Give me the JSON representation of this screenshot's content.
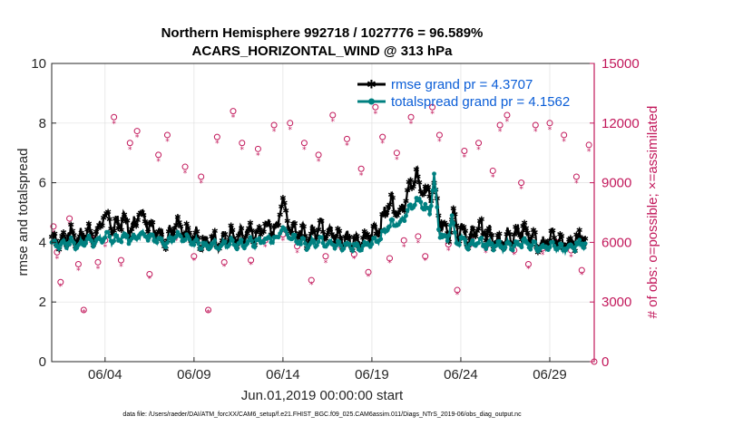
{
  "chart_data": {
    "type": "line",
    "title_line1": "Northern Hemisphere 992718 / 1027776 = 96.589%",
    "title_line2": "ACARS_HORIZONTAL_WIND @ 313 hPa",
    "xlabel": "Jun.01,2019 00:00:00 start",
    "ylabel": "rmse and totalspread",
    "ylabel_right": "# of obs: o=possible; ×=assimilated",
    "xlim": [
      0,
      30.5
    ],
    "ylim": [
      0,
      10
    ],
    "ylim_right": [
      0,
      15000
    ],
    "x_ticks": [
      3,
      8,
      13,
      18,
      23,
      28
    ],
    "x_tick_labels": [
      "06/04",
      "06/09",
      "06/14",
      "06/19",
      "06/24",
      "06/29"
    ],
    "y_ticks": [
      0,
      2,
      4,
      6,
      8,
      10
    ],
    "y_tick_labels": [
      "0",
      "2",
      "4",
      "6",
      "8",
      "10"
    ],
    "y_right_ticks": [
      0,
      3000,
      6000,
      9000,
      12000,
      15000
    ],
    "y_right_tick_labels": [
      "0",
      "3000",
      "6000",
      "9000",
      "12000",
      "15000"
    ],
    "colors": {
      "rmse": "#000000",
      "totalspread": "#008080",
      "obs": "#c2185b",
      "legend_text": "#0b5ed7"
    },
    "legend_position": "top-right",
    "legend": [
      {
        "label": "rmse grand pr = 4.3707",
        "series": "rmse"
      },
      {
        "label": "totalspread grand pr = 4.1562",
        "series": "totalspread"
      }
    ],
    "x_step_hours": 1,
    "rmse": {
      "name": "rmse",
      "key_days": [
        0,
        0.5,
        1,
        1.5,
        2,
        2.5,
        3,
        3.5,
        4,
        4.5,
        5,
        5.5,
        6,
        6.5,
        7,
        7.5,
        8,
        8.5,
        9,
        9.5,
        10,
        10.5,
        11,
        11.5,
        12,
        12.5,
        13,
        13.5,
        14,
        14.5,
        15,
        15.5,
        16,
        16.5,
        17,
        17.5,
        18,
        18.5,
        19,
        19.5,
        20,
        20.5,
        21,
        21.5,
        22,
        22.5,
        23,
        23.5,
        24,
        24.5,
        25,
        25.5,
        26,
        26.5,
        27,
        27.5,
        28,
        28.5,
        29,
        29.5,
        30
      ],
      "key_values": [
        4.2,
        4.0,
        4.3,
        4.1,
        4.4,
        4.2,
        4.9,
        4.5,
        4.8,
        4.4,
        5.0,
        4.6,
        4.3,
        4.1,
        4.6,
        4.3,
        4.2,
        4.0,
        4.1,
        4.0,
        4.3,
        4.1,
        4.4,
        4.2,
        4.6,
        4.4,
        4.9,
        4.5,
        4.3,
        4.1,
        4.6,
        4.4,
        4.2,
        4.1,
        4.1,
        4.0,
        4.3,
        4.6,
        5.4,
        5.0,
        5.6,
        6.3,
        5.8,
        5.1,
        4.6,
        4.2,
        4.4,
        4.1,
        4.5,
        4.3,
        4.0,
        4.1,
        4.3,
        4.4,
        4.2,
        3.8,
        4.2,
        4.0,
        3.9,
        4.1,
        4.2
      ],
      "spikes": [
        [
          3.0,
          4.9
        ],
        [
          5.0,
          5.0
        ],
        [
          13.0,
          5.5
        ],
        [
          19.5,
          5.0
        ],
        [
          20.8,
          5.6
        ],
        [
          21.5,
          6.0
        ],
        [
          22.6,
          5.2
        ]
      ]
    },
    "totalspread": {
      "name": "totalspread",
      "key_days": [
        0,
        0.5,
        1,
        1.5,
        2,
        2.5,
        3,
        3.5,
        4,
        4.5,
        5,
        5.5,
        6,
        6.5,
        7,
        7.5,
        8,
        8.5,
        9,
        9.5,
        10,
        10.5,
        11,
        11.5,
        12,
        12.5,
        13,
        13.5,
        14,
        14.5,
        15,
        15.5,
        16,
        16.5,
        17,
        17.5,
        18,
        18.5,
        19,
        19.5,
        20,
        20.5,
        21,
        21.5,
        22,
        22.5,
        23,
        23.5,
        24,
        24.5,
        25,
        25.5,
        26,
        26.5,
        27,
        27.5,
        28,
        28.5,
        29,
        29.5,
        30
      ],
      "key_values": [
        4.0,
        3.9,
        4.0,
        3.9,
        4.1,
        4.0,
        4.2,
        4.1,
        4.2,
        4.1,
        4.3,
        4.2,
        4.1,
        4.0,
        4.2,
        4.1,
        4.0,
        3.9,
        3.9,
        3.9,
        4.0,
        3.9,
        4.0,
        4.0,
        4.1,
        4.1,
        4.3,
        4.2,
        4.0,
        3.9,
        4.1,
        4.0,
        3.9,
        3.9,
        3.9,
        3.8,
        4.0,
        4.2,
        4.6,
        4.7,
        5.0,
        5.4,
        5.2,
        4.6,
        4.2,
        4.0,
        4.1,
        3.9,
        4.0,
        3.9,
        3.9,
        3.9,
        3.9,
        4.0,
        3.9,
        3.8,
        3.9,
        3.8,
        3.8,
        3.9,
        4.0
      ],
      "spikes": [
        [
          21.5,
          6.3
        ],
        [
          22.5,
          4.9
        ],
        [
          13.0,
          4.5
        ],
        [
          19.5,
          4.6
        ]
      ]
    },
    "obs_possible": [
      [
        0.1,
        6800
      ],
      [
        0.3,
        5500
      ],
      [
        0.5,
        4000
      ],
      [
        1.0,
        7200
      ],
      [
        1.5,
        4900
      ],
      [
        1.8,
        2600
      ],
      [
        2.2,
        6300
      ],
      [
        2.6,
        5000
      ],
      [
        3.0,
        6100
      ],
      [
        3.5,
        12300
      ],
      [
        3.9,
        5100
      ],
      [
        4.4,
        11000
      ],
      [
        4.8,
        11600
      ],
      [
        5.5,
        4400
      ],
      [
        6.0,
        10400
      ],
      [
        6.5,
        11400
      ],
      [
        7.0,
        6400
      ],
      [
        7.5,
        9800
      ],
      [
        8.0,
        5300
      ],
      [
        8.4,
        9300
      ],
      [
        8.8,
        2600
      ],
      [
        9.3,
        11300
      ],
      [
        9.7,
        5000
      ],
      [
        10.2,
        12600
      ],
      [
        10.7,
        11000
      ],
      [
        11.2,
        5100
      ],
      [
        11.6,
        10700
      ],
      [
        12.0,
        6100
      ],
      [
        12.5,
        11900
      ],
      [
        13.0,
        6400
      ],
      [
        13.4,
        12000
      ],
      [
        13.8,
        5800
      ],
      [
        14.2,
        11000
      ],
      [
        14.6,
        4100
      ],
      [
        15.0,
        10400
      ],
      [
        15.4,
        5300
      ],
      [
        15.8,
        12400
      ],
      [
        16.2,
        6000
      ],
      [
        16.6,
        11200
      ],
      [
        17.0,
        5400
      ],
      [
        17.4,
        9700
      ],
      [
        17.8,
        4500
      ],
      [
        18.2,
        12800
      ],
      [
        18.6,
        11300
      ],
      [
        19.0,
        5200
      ],
      [
        19.4,
        10500
      ],
      [
        19.8,
        6100
      ],
      [
        20.2,
        12300
      ],
      [
        20.6,
        6300
      ],
      [
        21.0,
        5300
      ],
      [
        21.4,
        12800
      ],
      [
        21.8,
        11400
      ],
      [
        22.3,
        5900
      ],
      [
        22.8,
        3600
      ],
      [
        23.2,
        10600
      ],
      [
        23.6,
        6100
      ],
      [
        24.0,
        11000
      ],
      [
        24.4,
        5800
      ],
      [
        24.8,
        9600
      ],
      [
        25.2,
        11900
      ],
      [
        25.6,
        12400
      ],
      [
        26.0,
        5600
      ],
      [
        26.4,
        9000
      ],
      [
        26.8,
        4900
      ],
      [
        27.2,
        11900
      ],
      [
        27.6,
        5700
      ],
      [
        28.0,
        12000
      ],
      [
        28.4,
        6000
      ],
      [
        28.8,
        11400
      ],
      [
        29.2,
        5600
      ],
      [
        29.5,
        9300
      ],
      [
        29.8,
        4600
      ],
      [
        30.2,
        10900
      ],
      [
        30.5,
        0
      ]
    ],
    "obs_assimilated": [
      [
        0.1,
        6500
      ],
      [
        0.3,
        5200
      ],
      [
        0.5,
        3800
      ],
      [
        1.0,
        6900
      ],
      [
        1.5,
        4600
      ],
      [
        1.8,
        2500
      ],
      [
        2.2,
        6000
      ],
      [
        2.6,
        4700
      ],
      [
        3.0,
        5800
      ],
      [
        3.5,
        12000
      ],
      [
        3.9,
        4800
      ],
      [
        4.4,
        10700
      ],
      [
        4.8,
        11300
      ],
      [
        5.5,
        4200
      ],
      [
        6.0,
        10100
      ],
      [
        6.5,
        11100
      ],
      [
        7.0,
        6100
      ],
      [
        7.5,
        9500
      ],
      [
        8.0,
        5100
      ],
      [
        8.4,
        9000
      ],
      [
        8.8,
        2500
      ],
      [
        9.3,
        11000
      ],
      [
        9.7,
        4800
      ],
      [
        10.2,
        12300
      ],
      [
        10.7,
        10700
      ],
      [
        11.2,
        4900
      ],
      [
        11.6,
        10400
      ],
      [
        12.0,
        5800
      ],
      [
        12.5,
        11600
      ],
      [
        13.0,
        6100
      ],
      [
        13.4,
        11700
      ],
      [
        13.8,
        5500
      ],
      [
        14.2,
        10700
      ],
      [
        14.6,
        3900
      ],
      [
        15.0,
        10100
      ],
      [
        15.4,
        5000
      ],
      [
        15.8,
        12100
      ],
      [
        16.2,
        5700
      ],
      [
        16.6,
        10900
      ],
      [
        17.0,
        5200
      ],
      [
        17.4,
        9400
      ],
      [
        17.8,
        4300
      ],
      [
        18.2,
        12500
      ],
      [
        18.6,
        11000
      ],
      [
        19.0,
        5000
      ],
      [
        19.4,
        10200
      ],
      [
        19.8,
        5800
      ],
      [
        20.2,
        12000
      ],
      [
        20.6,
        6000
      ],
      [
        21.0,
        5100
      ],
      [
        21.4,
        12500
      ],
      [
        21.8,
        11100
      ],
      [
        22.3,
        5600
      ],
      [
        22.8,
        3400
      ],
      [
        23.2,
        10300
      ],
      [
        23.6,
        5800
      ],
      [
        24.0,
        10700
      ],
      [
        24.4,
        5500
      ],
      [
        24.8,
        9300
      ],
      [
        25.2,
        11600
      ],
      [
        25.6,
        12100
      ],
      [
        26.0,
        5400
      ],
      [
        26.4,
        8700
      ],
      [
        26.8,
        4700
      ],
      [
        27.2,
        11600
      ],
      [
        27.6,
        5400
      ],
      [
        28.0,
        11700
      ],
      [
        28.4,
        5700
      ],
      [
        28.8,
        11100
      ],
      [
        29.2,
        5300
      ],
      [
        29.5,
        9000
      ],
      [
        29.8,
        4400
      ],
      [
        30.2,
        10600
      ]
    ]
  },
  "footer": "data file: /Users/raeder/DAI/ATM_forcXX/CAM6_setup/f.e21.FHIST_BGC.f09_025.CAM6assim.011/Diags_NTrS_2019-06/obs_diag_output.nc"
}
